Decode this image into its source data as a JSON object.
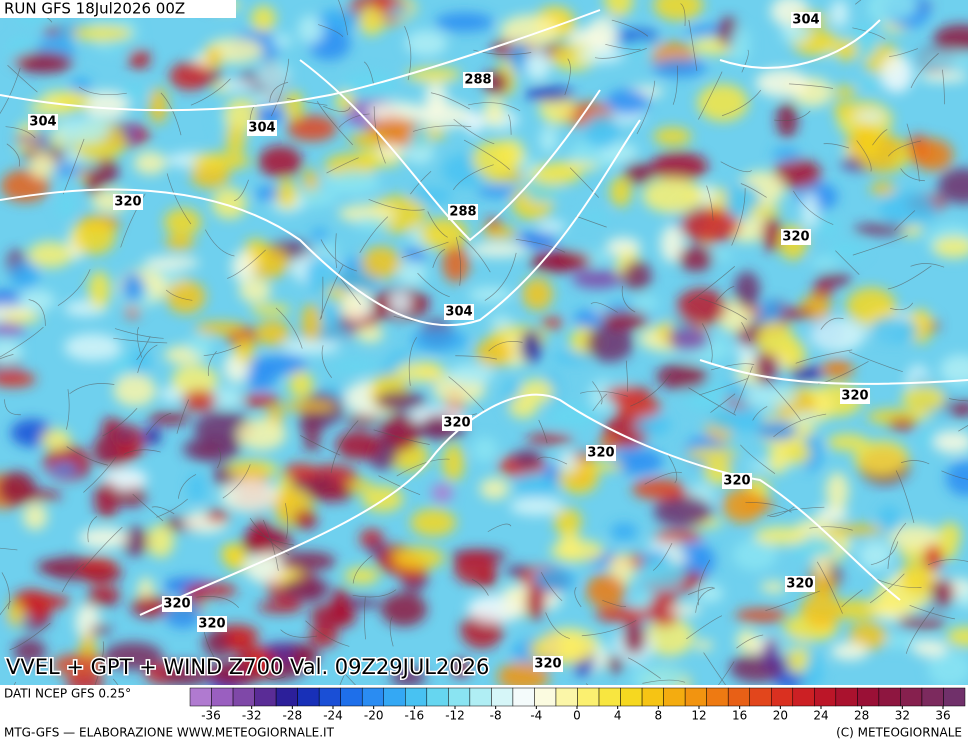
{
  "header": {
    "run": "RUN GFS 18Jul2026 00Z"
  },
  "title": "VVEL + GPT + WIND Z700 Val. 09Z29JUL2026",
  "contour_labels": [
    304,
    304,
    304,
    288,
    288,
    304,
    320,
    320,
    320,
    320,
    320,
    320,
    320,
    320,
    320,
    320
  ],
  "legend": {
    "source": "DATI NCEP GFS 0.25°",
    "ticks": [
      -36,
      -32,
      -28,
      -24,
      -20,
      -16,
      -12,
      -8,
      -4,
      0,
      4,
      8,
      12,
      16,
      20,
      24,
      28,
      32,
      36
    ],
    "colors": [
      "#b07ad0",
      "#9a5fc0",
      "#7f48a8",
      "#5a2c96",
      "#2c1f9a",
      "#1830b8",
      "#1a4fd6",
      "#1e6fea",
      "#2a8cf2",
      "#34a8f4",
      "#48c2f2",
      "#66d6f0",
      "#8ae4f2",
      "#b0eef4",
      "#d6f6f8",
      "#f4fbfb",
      "#fbfbe0",
      "#fbf6a8",
      "#fbf070",
      "#f8e640",
      "#f6d820",
      "#f6c414",
      "#f4ac10",
      "#f29410",
      "#ee7a12",
      "#e86016",
      "#e2461c",
      "#da3020",
      "#cc2024",
      "#bc1628",
      "#aa122e",
      "#9a1036",
      "#8e1640",
      "#86204e",
      "#7c2a5e",
      "#70306a"
    ]
  },
  "footer": {
    "left": "MTG-GFS — ELABORAZIONE WWW.METEOGIORNALE.IT",
    "right": "(C) METEOGIORNALE"
  }
}
